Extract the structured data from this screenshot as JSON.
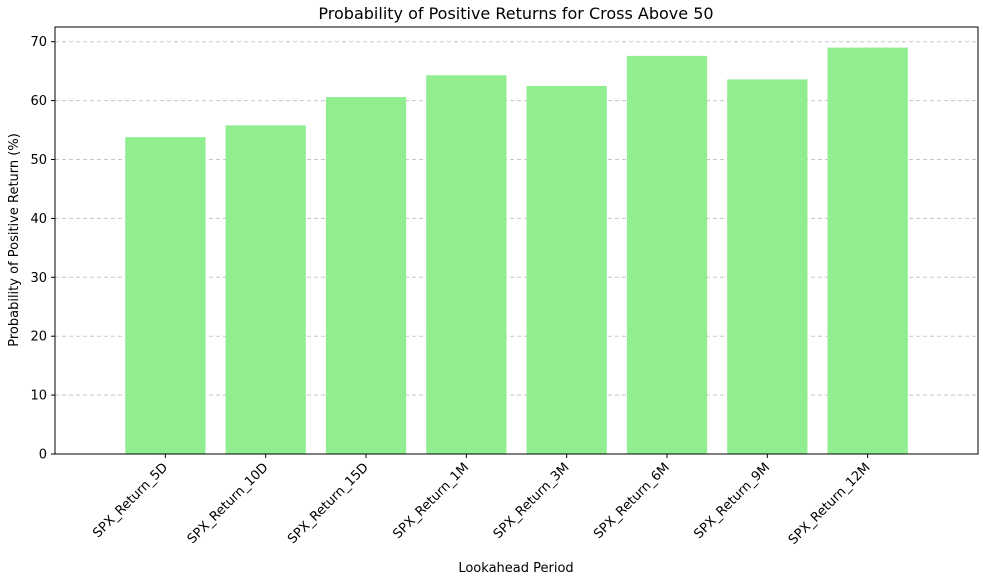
{
  "chart_data": {
    "type": "bar",
    "title": "Probability of Positive Returns for Cross Above 50",
    "xlabel": "Lookahead Period",
    "ylabel": "Probability of Positive Return (%)",
    "categories": [
      "SPX_Return_5D",
      "SPX_Return_10D",
      "SPX_Return_15D",
      "SPX_Return_1M",
      "SPX_Return_3M",
      "SPX_Return_6M",
      "SPX_Return_9M",
      "SPX_Return_12M"
    ],
    "values": [
      53.8,
      55.8,
      60.6,
      64.3,
      62.5,
      67.6,
      63.6,
      69.0
    ],
    "ylim": [
      0,
      72.5
    ],
    "yticks": [
      0,
      10,
      20,
      30,
      40,
      50,
      60,
      70
    ],
    "grid": "y-dashed",
    "bar_color": "#90ee90"
  }
}
